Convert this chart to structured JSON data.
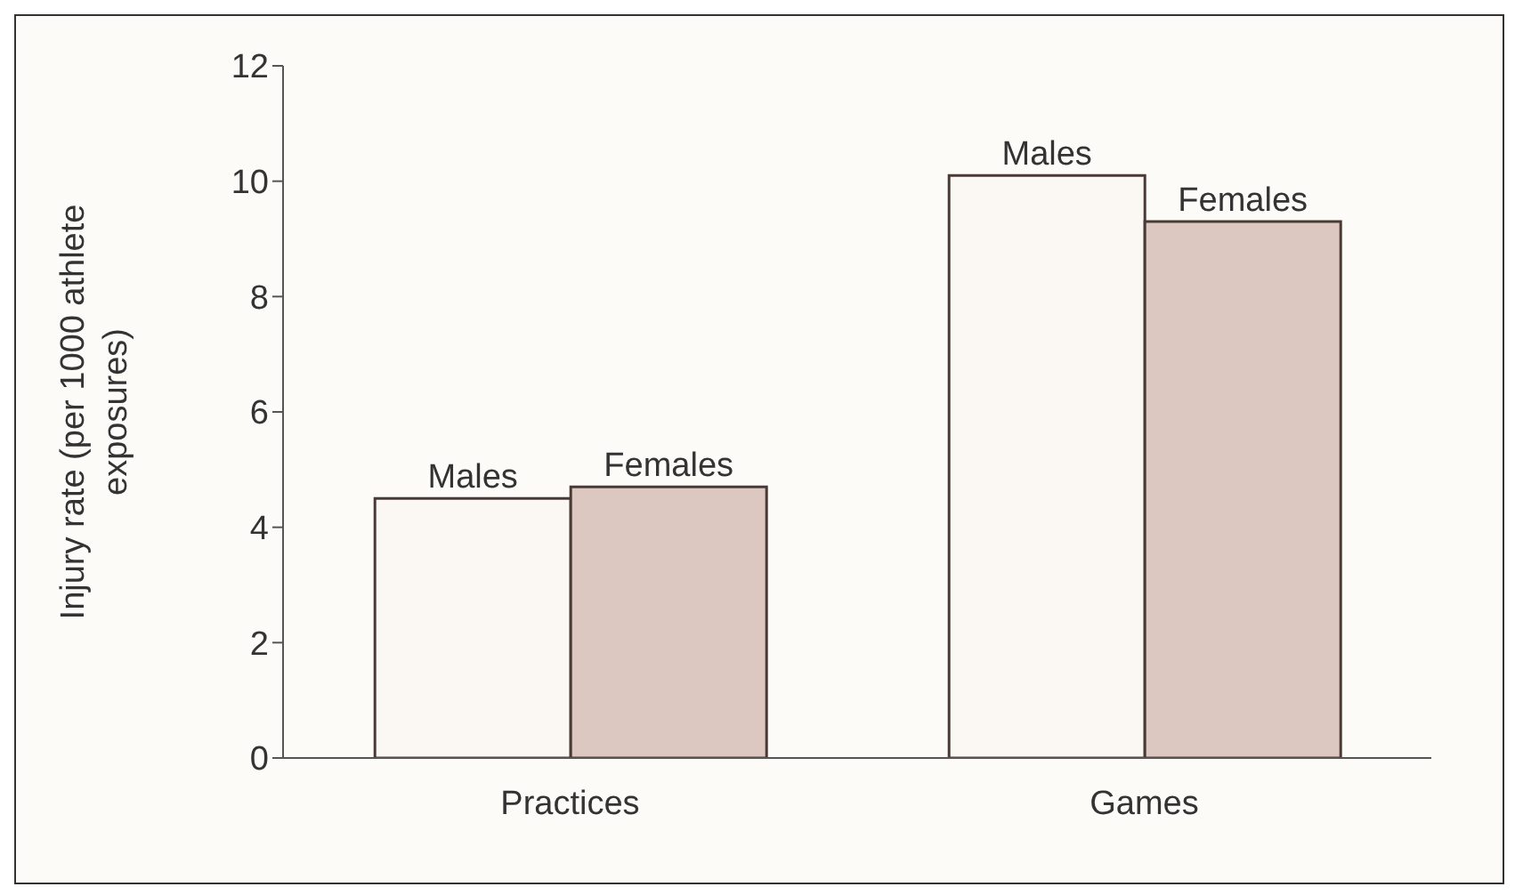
{
  "chart_data": {
    "type": "bar",
    "ylabel": "Injury rate (per 1000 athlete exposures)",
    "categories": [
      "Practices",
      "Games"
    ],
    "series": [
      {
        "name": "Males",
        "color": "#fbf8f4",
        "values": [
          4.5,
          10.1
        ]
      },
      {
        "name": "Females",
        "color": "#dcc8c0",
        "values": [
          4.7,
          9.3
        ]
      }
    ],
    "ylim": [
      0,
      12
    ],
    "yticks": [
      0,
      2,
      4,
      6,
      8,
      10,
      12
    ],
    "grid": false,
    "legend": false
  }
}
